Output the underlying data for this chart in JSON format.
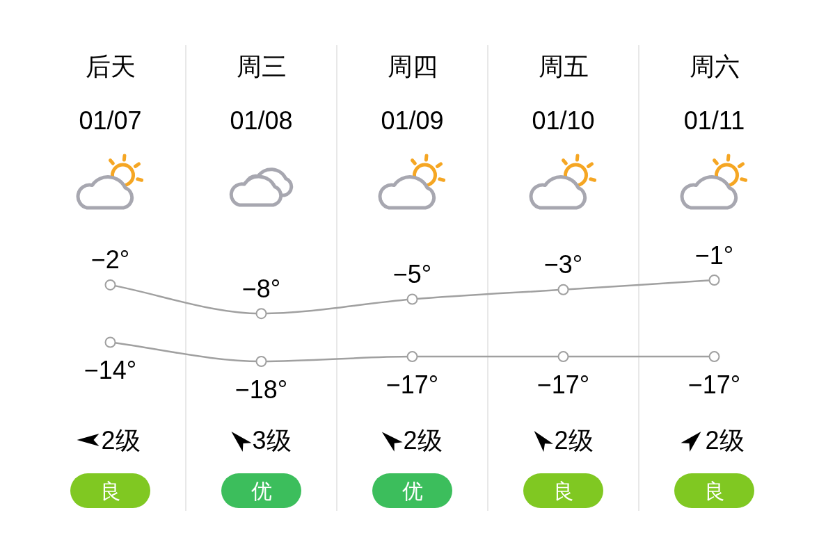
{
  "chart_data": [
    {
      "type": "line",
      "categories": [
        "后天",
        "周三",
        "周四",
        "周五",
        "周六"
      ],
      "annotations": [
        "01/07",
        "01/08",
        "01/09",
        "01/10",
        "01/11",
        "2级",
        "3级",
        "2级",
        "2级",
        "2级"
      ],
      "series": [
        {
          "color": "#a0a0a0",
          "values": [
            -2,
            -8,
            -5,
            -3,
            -1
          ],
          "value_labels": [
            "−2°",
            "−8°",
            "−5°",
            "−3°",
            "−1°"
          ]
        },
        {
          "color": "#a0a0a0",
          "values": [
            -14,
            -18,
            -17,
            -17,
            -17
          ],
          "value_labels": [
            "−14°",
            "−18°",
            "−17°",
            "−17°",
            "−17°"
          ]
        }
      ],
      "marker": "circle",
      "grid": "x"
    },
    {
      "type": "other",
      "categories": [
        "良",
        "优",
        "优",
        "良",
        "良"
      ],
      "colors": [
        "#80c822",
        "#3cbe5c",
        "#3cbe5c",
        "#80c822",
        "#80c822"
      ]
    }
  ]
}
